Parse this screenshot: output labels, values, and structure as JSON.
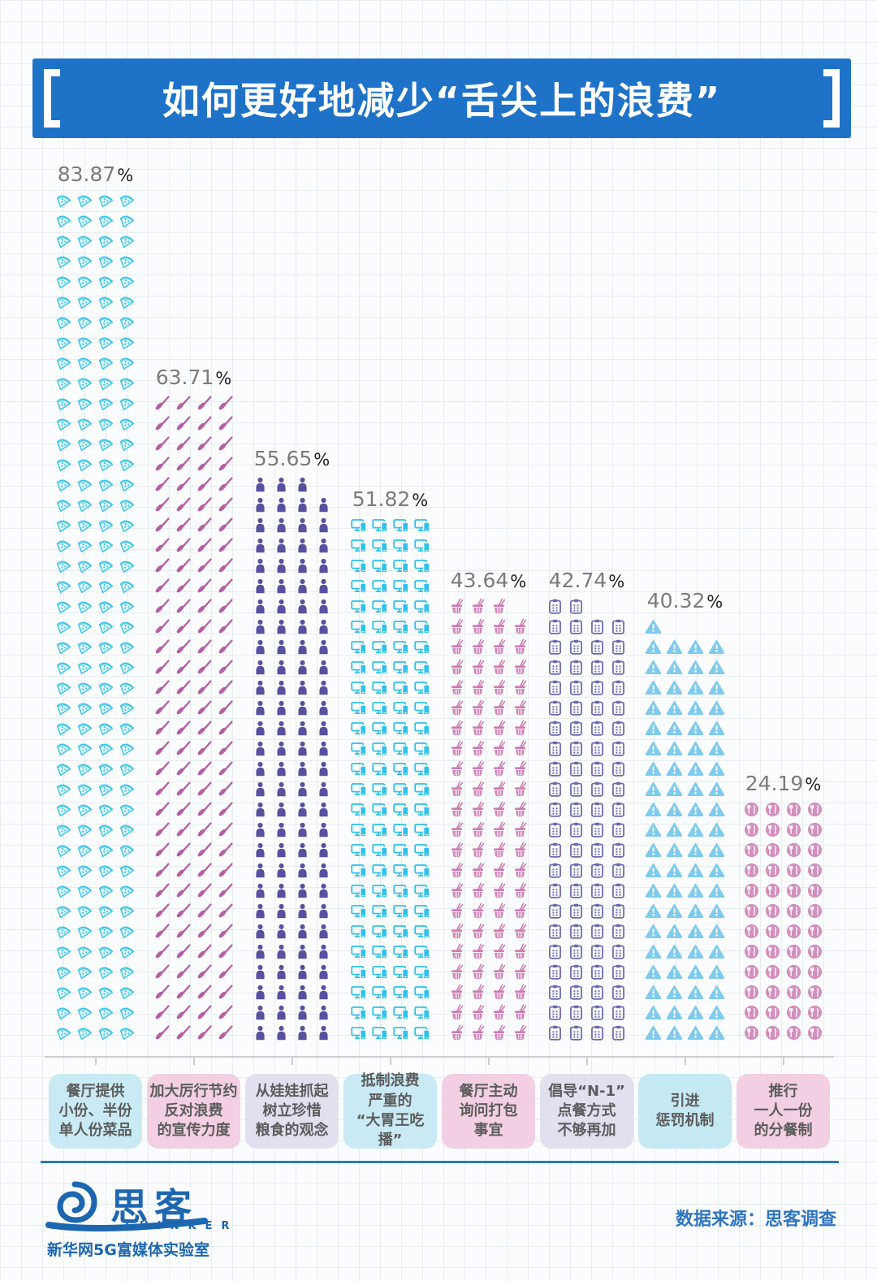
{
  "title": {
    "text": "如何更好地减少“舌尖上的浪费”"
  },
  "chart_data": {
    "type": "bar",
    "subtype": "pictogram-bar",
    "title": "如何更好地减少“舌尖上的浪费”",
    "unit": "%",
    "icons_per_row": 4,
    "percent_per_icon": 0.5,
    "grid": true,
    "legend_position": "none",
    "ylim": [
      0,
      100
    ],
    "categories": [
      "餐厅提供小份、半份单人份菜品",
      "加大厉行节约反对浪费的宣传力度",
      "从娃娃抓起树立珍惜粮食的观念",
      "抵制浪费严重的“大胃王吃播”",
      "餐厅主动询问打包事宜",
      "倡导“N-1”点餐方式不够再加",
      "引进惩罚机制",
      "推行一人一份的分餐制"
    ],
    "values": [
      83.87,
      63.71,
      55.65,
      51.82,
      43.64,
      42.74,
      40.32,
      24.19
    ],
    "columns": [
      {
        "value": 83.87,
        "value_display": "83.87",
        "label_lines": [
          "餐厅提供",
          "小份、半份",
          "单人份菜品"
        ],
        "icon": "pizza-slice-icon",
        "icon_count": 168,
        "icon_color": "#3FC6EA",
        "label_bg": "#C9EAF4"
      },
      {
        "value": 63.71,
        "value_display": "63.71",
        "label_lines": [
          "加大厉行节约",
          "反对浪费",
          "的宣传力度"
        ],
        "icon": "writing-brush-icon",
        "icon_count": 128,
        "icon_color": "#B55FA5",
        "label_bg": "#F2CFE2"
      },
      {
        "value": 55.65,
        "value_display": "55.65",
        "label_lines": [
          "从娃娃抓起",
          "树立珍惜",
          "粮食的观念"
        ],
        "icon": "person-icon",
        "icon_count": 111,
        "icon_color": "#57519F",
        "label_bg": "#E2DFEF"
      },
      {
        "value": 51.82,
        "value_display": "51.82",
        "label_lines": [
          "抵制浪费",
          "严重的",
          "“大胃王吃播”"
        ],
        "icon": "screen-phone-icon",
        "icon_count": 104,
        "icon_color": "#2EC2EA",
        "label_bg": "#C9EAF4"
      },
      {
        "value": 43.64,
        "value_display": "43.64",
        "label_lines": [
          "餐厅主动",
          "询问打包",
          "事宜"
        ],
        "icon": "takeout-box-icon",
        "icon_count": 87,
        "icon_color": "#CE7BB3",
        "label_bg": "#F2CFE2"
      },
      {
        "value": 42.74,
        "value_display": "42.74",
        "label_lines": [
          "倡导“N-1”",
          "点餐方式",
          "不够再加"
        ],
        "icon": "clipboard-menu-icon",
        "icon_count": 86,
        "icon_color": "#6B6AB0",
        "label_bg": "#E2DFEF"
      },
      {
        "value": 40.32,
        "value_display": "40.32",
        "label_lines": [
          "引进",
          "惩罚机制"
        ],
        "icon": "warning-triangle-icon",
        "icon_count": 81,
        "icon_color": "#7FCBEE",
        "label_bg": "#C5E9F3"
      },
      {
        "value": 24.19,
        "value_display": "24.19",
        "label_lines": [
          "推行",
          "一人一份",
          "的分餐制"
        ],
        "icon": "meal-cutlery-icon",
        "icon_count": 48,
        "icon_color": "#D38FBD",
        "label_bg": "#F2CFE2"
      }
    ],
    "percent_sign": "%"
  },
  "footer": {
    "logo_text": "思客",
    "logo_subtext": "THINKER",
    "org": "新华网5G富媒体实验室",
    "source": "数据来源：思客调查"
  },
  "colors": {
    "title_bg": "#1E73C9",
    "title_text": "#FFFFFF",
    "pct_digits": "#7B7B7B",
    "pct_sign": "#222222",
    "baseline": "#C9CED6",
    "footer_line": "#2B7CAD",
    "footer_blue": "#1D67B0",
    "source_blue": "#2E74C0",
    "label_text": "#5C5C5C"
  }
}
